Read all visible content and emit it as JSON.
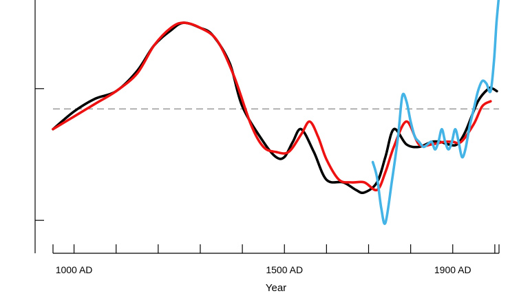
{
  "chart_data": {
    "type": "line",
    "title": "",
    "xlabel": "Year",
    "ylabel": "",
    "xlim": [
      950,
      2010
    ],
    "ylim": [
      0,
      1
    ],
    "grid": false,
    "legend": "none",
    "x_tick_labels": [
      {
        "x": 1000,
        "label": "1000 AD"
      },
      {
        "x": 1500,
        "label": "1500 AD"
      },
      {
        "x": 1900,
        "label": "1900 AD"
      }
    ],
    "x_minor_ticks": [
      1100,
      1200,
      1300,
      1400,
      1600,
      1700,
      1800,
      2000
    ],
    "y_ticks": [
      0.13,
      0.65
    ],
    "reference_line": {
      "y": 0.57,
      "style": "dashed",
      "color": "#888888"
    },
    "series": [
      {
        "color": "#000000",
        "x": [
          950,
          1000,
          1050,
          1100,
          1150,
          1190,
          1230,
          1260,
          1300,
          1330,
          1370,
          1400,
          1450,
          1480,
          1500,
          1520,
          1540,
          1570,
          1600,
          1640,
          1670,
          1690,
          1720,
          1740,
          1760,
          1790,
          1820,
          1850,
          1870,
          1890,
          1910,
          1930,
          1960,
          1985,
          1995,
          2005
        ],
        "y": [
          0.49,
          0.56,
          0.61,
          0.64,
          0.72,
          0.82,
          0.88,
          0.91,
          0.89,
          0.86,
          0.75,
          0.58,
          0.44,
          0.38,
          0.38,
          0.44,
          0.49,
          0.4,
          0.29,
          0.28,
          0.25,
          0.24,
          0.28,
          0.38,
          0.49,
          0.43,
          0.42,
          0.44,
          0.44,
          0.43,
          0.43,
          0.48,
          0.6,
          0.65,
          0.65,
          0.64
        ]
      },
      {
        "color": "#ee1111",
        "x": [
          950,
          1000,
          1050,
          1100,
          1150,
          1190,
          1230,
          1260,
          1300,
          1340,
          1380,
          1420,
          1450,
          1480,
          1510,
          1540,
          1560,
          1580,
          1600,
          1630,
          1660,
          1690,
          1720,
          1740,
          1760,
          1790,
          1820,
          1850,
          1880,
          1900,
          1920,
          1950,
          1970,
          1990
        ],
        "y": [
          0.49,
          0.54,
          0.59,
          0.64,
          0.71,
          0.82,
          0.89,
          0.91,
          0.89,
          0.84,
          0.7,
          0.51,
          0.42,
          0.4,
          0.4,
          0.47,
          0.52,
          0.46,
          0.37,
          0.29,
          0.28,
          0.28,
          0.25,
          0.32,
          0.42,
          0.52,
          0.43,
          0.43,
          0.44,
          0.44,
          0.44,
          0.51,
          0.58,
          0.6
        ]
      },
      {
        "color": "#44b3e6",
        "x": [
          1710,
          1720,
          1730,
          1740,
          1755,
          1770,
          1780,
          1790,
          1800,
          1810,
          1820,
          1830,
          1840,
          1850,
          1858,
          1866,
          1874,
          1882,
          1890,
          1898,
          1906,
          1914,
          1922,
          1930,
          1940,
          1950,
          1960,
          1970,
          1980,
          1990,
          1998,
          2004,
          2010
        ],
        "y": [
          0.36,
          0.3,
          0.18,
          0.12,
          0.28,
          0.46,
          0.62,
          0.6,
          0.52,
          0.46,
          0.44,
          0.42,
          0.43,
          0.44,
          0.41,
          0.44,
          0.49,
          0.44,
          0.41,
          0.44,
          0.49,
          0.44,
          0.38,
          0.41,
          0.5,
          0.57,
          0.64,
          0.68,
          0.67,
          0.64,
          0.76,
          0.91,
          1.02
        ]
      }
    ]
  }
}
